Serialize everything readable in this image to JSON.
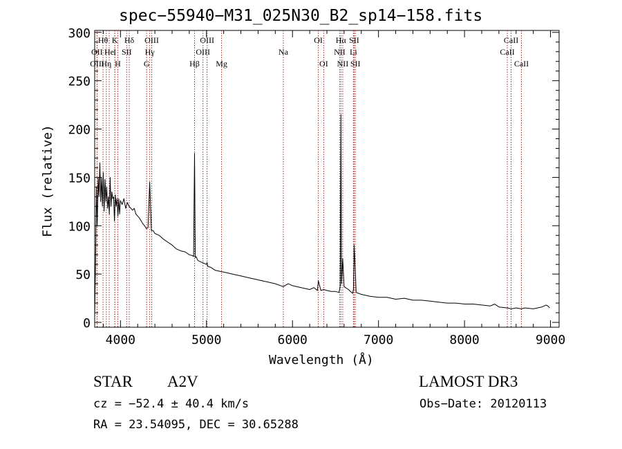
{
  "chart_data": {
    "type": "line",
    "title": "spec−55940−M31_025N30_B2_sp14−158.fits",
    "xlabel": "Wavelength (Å)",
    "ylabel": "Flux (relative)",
    "xlim": [
      3700,
      9100
    ],
    "ylim": [
      -5,
      302
    ],
    "xticks": [
      4000,
      5000,
      6000,
      7000,
      8000,
      9000
    ],
    "yticks": [
      0,
      50,
      100,
      150,
      200,
      250,
      300
    ],
    "grid": false,
    "series": [
      {
        "name": "flux",
        "x": [
          3700,
          3710,
          3720,
          3730,
          3740,
          3750,
          3760,
          3770,
          3780,
          3790,
          3800,
          3810,
          3820,
          3830,
          3840,
          3850,
          3860,
          3870,
          3880,
          3890,
          3900,
          3910,
          3920,
          3930,
          3940,
          3950,
          3960,
          3970,
          3980,
          3990,
          4000,
          4020,
          4040,
          4060,
          4080,
          4100,
          4120,
          4140,
          4160,
          4180,
          4200,
          4220,
          4240,
          4260,
          4280,
          4300,
          4320,
          4340,
          4360,
          4380,
          4400,
          4450,
          4500,
          4550,
          4600,
          4650,
          4700,
          4750,
          4800,
          4840,
          4850,
          4861,
          4870,
          4880,
          4900,
          4950,
          5000,
          5007,
          5015,
          5050,
          5100,
          5150,
          5200,
          5300,
          5400,
          5500,
          5600,
          5700,
          5800,
          5893,
          5950,
          6000,
          6100,
          6200,
          6250,
          6290,
          6300,
          6330,
          6363,
          6400,
          6450,
          6500,
          6540,
          6548,
          6555,
          6563,
          6570,
          6584,
          6600,
          6650,
          6700,
          6710,
          6717,
          6731,
          6740,
          6800,
          6900,
          7000,
          7100,
          7200,
          7300,
          7400,
          7500,
          7600,
          7700,
          7800,
          7900,
          8000,
          8100,
          8200,
          8300,
          8350,
          8400,
          8500,
          8542,
          8600,
          8662,
          8700,
          8800,
          8900,
          8950,
          8970,
          8990
        ],
        "y": [
          5,
          60,
          140,
          100,
          150,
          130,
          165,
          125,
          150,
          120,
          155,
          115,
          148,
          125,
          140,
          118,
          130,
          112,
          150,
          120,
          135,
          128,
          130,
          105,
          132,
          120,
          128,
          110,
          128,
          112,
          126,
          122,
          128,
          118,
          124,
          120,
          118,
          116,
          118,
          112,
          110,
          108,
          105,
          102,
          100,
          97,
          98,
          145,
          95,
          95,
          92,
          90,
          86,
          83,
          80,
          76,
          74,
          73,
          70,
          69,
          68,
          175,
          67,
          68,
          64,
          62,
          60,
          62,
          58,
          57,
          54,
          53,
          52,
          50,
          48,
          46,
          44,
          42,
          40,
          37,
          40,
          38,
          36,
          34,
          36,
          33,
          43,
          33,
          34,
          33,
          32,
          32,
          31,
          34,
          38,
          215,
          40,
          66,
          37,
          34,
          30,
          35,
          80,
          52,
          31,
          29,
          27,
          26,
          26,
          24,
          25,
          23,
          23,
          22,
          21,
          20,
          20,
          19,
          19,
          18,
          17,
          19,
          16,
          15,
          14,
          15,
          14,
          15,
          14,
          16,
          18,
          17,
          15
        ]
      }
    ],
    "lines": [
      {
        "label": "Hθ",
        "wl": 3797,
        "row": 0
      },
      {
        "label": "OII",
        "wl": 3727,
        "row": 1
      },
      {
        "label": "OIII",
        "wl": 3729,
        "row": 2
      },
      {
        "label": "He",
        "wl": 3869,
        "row": 1
      },
      {
        "label": "Hη",
        "wl": 3835,
        "row": 2
      },
      {
        "label": "K",
        "wl": 3934,
        "row": 0
      },
      {
        "label": "H",
        "wl": 3969,
        "row": 2
      },
      {
        "label": "I",
        "wl": 3934,
        "row": 1
      },
      {
        "label": "SII",
        "wl": 4072,
        "row": 1
      },
      {
        "label": "Hδ",
        "wl": 4102,
        "row": 0
      },
      {
        "label": "OIII",
        "wl": 4363,
        "row": 0
      },
      {
        "label": "Hγ",
        "wl": 4340,
        "row": 1
      },
      {
        "label": "G",
        "wl": 4304,
        "row": 2
      },
      {
        "label": "Hβ",
        "wl": 4861,
        "row": 2
      },
      {
        "label": "OIII",
        "wl": 5007,
        "row": 0
      },
      {
        "label": "OIII",
        "wl": 4959,
        "row": 1
      },
      {
        "label": "Mg",
        "wl": 5175,
        "row": 2
      },
      {
        "label": "Na",
        "wl": 5893,
        "row": 1
      },
      {
        "label": "OI",
        "wl": 6300,
        "row": 0
      },
      {
        "label": "OI",
        "wl": 6363,
        "row": 2
      },
      {
        "label": "Hα",
        "wl": 6563,
        "row": 0
      },
      {
        "label": "SII",
        "wl": 6717,
        "row": 0
      },
      {
        "label": "NII",
        "wl": 6548,
        "row": 1
      },
      {
        "label": "Li",
        "wl": 6708,
        "row": 1
      },
      {
        "label": "NII",
        "wl": 6584,
        "row": 2
      },
      {
        "label": "SII",
        "wl": 6731,
        "row": 2
      },
      {
        "label": "CaII",
        "wl": 8542,
        "row": 0
      },
      {
        "label": "CaII",
        "wl": 8498,
        "row": 1
      },
      {
        "label": "CaII",
        "wl": 8662,
        "row": 2
      }
    ]
  },
  "info": {
    "object_class": "STAR",
    "subclass": "A2V",
    "survey": "LAMOST DR3",
    "redshift": "cz = −52.4 ± 40.4 km/s",
    "obs_date": "Obs−Date: 20120113",
    "coords": "RA =  23.54095, DEC =  30.65288"
  },
  "colors": {
    "axis": "#000000",
    "spectrum": "#000000",
    "line_markers": "#a52a2a"
  }
}
